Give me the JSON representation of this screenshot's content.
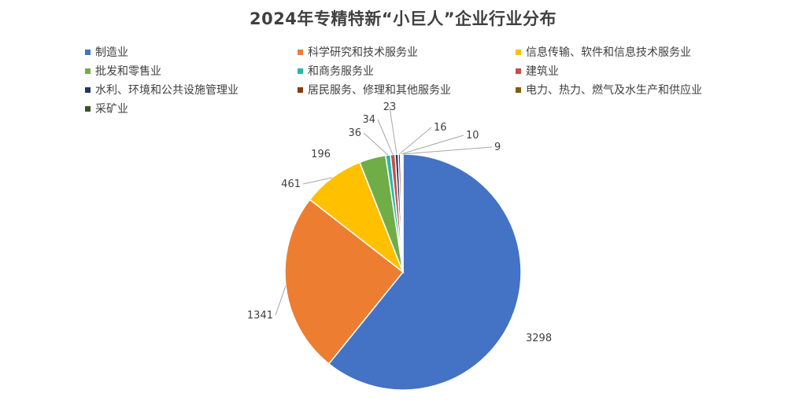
{
  "chart_data": {
    "type": "pie",
    "title": "2024年专精特新“小巨人”企业行业分布",
    "legend_position": "top",
    "categories": [
      "制造业",
      "科学研究和技术服务业",
      "信息传输、软件和信息技术服务业",
      "批发和零售业",
      "和商务服务业",
      "建筑业",
      "水利、环境和公共设施管理业",
      "居民服务、修理和其他服务业",
      "电力、热力、燃气及水生产和供应业",
      "采矿业"
    ],
    "values": [
      3298,
      1341,
      461,
      196,
      36,
      34,
      23,
      16,
      10,
      9
    ],
    "colors": [
      "#4472C4",
      "#ED7D31",
      "#FFC000",
      "#70AD47",
      "#2FB5A8",
      "#C0504D",
      "#1F3864",
      "#843C0C",
      "#7F6000",
      "#375623"
    ],
    "data_labels": [
      "3298",
      "1341",
      "461",
      "196",
      "36",
      "34",
      "23",
      "16",
      "10",
      "9"
    ]
  }
}
